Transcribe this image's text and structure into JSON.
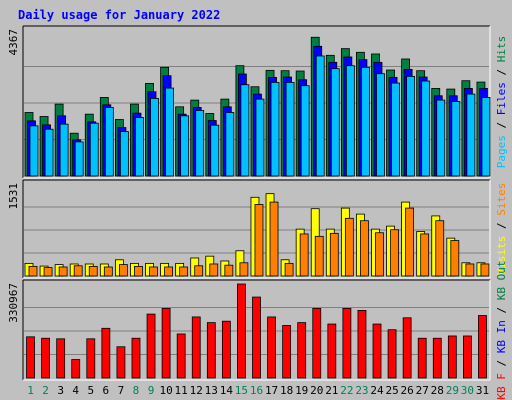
{
  "chart_data": {
    "type": "bar",
    "title": "Daily usage for January 2022",
    "x": [
      "1",
      "2",
      "3",
      "4",
      "5",
      "6",
      "7",
      "8",
      "9",
      "10",
      "11",
      "12",
      "13",
      "14",
      "15",
      "16",
      "17",
      "18",
      "19",
      "20",
      "21",
      "22",
      "23",
      "24",
      "25",
      "26",
      "27",
      "28",
      "29",
      "30",
      "31"
    ],
    "weekend_days": [
      "1",
      "2",
      "8",
      "9",
      "15",
      "16",
      "22",
      "23",
      "29",
      "30"
    ],
    "panels": [
      {
        "id": "hits",
        "ymax_label": "4367",
        "ymax": 4367,
        "right_label": [
          {
            "text": "Pages",
            "color": "#00C0FF"
          },
          {
            "text": " / ",
            "color": "#000000"
          },
          {
            "text": "Files",
            "color": "#0000FF"
          },
          {
            "text": " / ",
            "color": "#000000"
          },
          {
            "text": "Hits",
            "color": "#008040"
          }
        ],
        "series": [
          {
            "name": "Hits",
            "color": "#008040",
            "values": [
              1900,
              1780,
              2150,
              1280,
              1850,
              2350,
              1690,
              2150,
              2770,
              3250,
              2070,
              2270,
              1870,
              2300,
              3300,
              2670,
              3160,
              3150,
              3140,
              4150,
              3610,
              3810,
              3700,
              3650,
              3170,
              3500,
              3150,
              2620,
              2600,
              2850,
              2810
            ]
          },
          {
            "name": "Files",
            "color": "#0000FF",
            "values": [
              1650,
              1530,
              1800,
              1080,
              1620,
              2130,
              1450,
              1880,
              2520,
              3000,
              1850,
              2050,
              1660,
              2070,
              3050,
              2450,
              2950,
              2960,
              2880,
              3880,
              3400,
              3560,
              3480,
              3400,
              2950,
              3190,
              2960,
              2400,
              2400,
              2620,
              2620
            ]
          },
          {
            "name": "Pages",
            "color": "#00C0FF",
            "values": [
              1500,
              1400,
              1550,
              1020,
              1580,
              2050,
              1330,
              1750,
              2320,
              2630,
              1800,
              1960,
              1520,
              1900,
              2730,
              2300,
              2800,
              2800,
              2700,
              3590,
              3210,
              3300,
              3250,
              3060,
              2780,
              2980,
              2840,
              2270,
              2230,
              2450,
              2350
            ]
          }
        ]
      },
      {
        "id": "visits",
        "ymax_label": "1531",
        "ymax": 1531,
        "right_label": [
          {
            "text": "Visits",
            "color": "#FFFF00"
          },
          {
            "text": " / ",
            "color": "#000000"
          },
          {
            "text": "Sites",
            "color": "#FF8000"
          }
        ],
        "series": [
          {
            "name": "Visits",
            "color": "#FFFF00",
            "values": [
              210,
              165,
              190,
              200,
              200,
              200,
              270,
              210,
              210,
              210,
              210,
              300,
              330,
              250,
              420,
              1310,
              1370,
              270,
              780,
              1120,
              780,
              1130,
              1030,
              780,
              830,
              1230,
              740,
              1000,
              630,
              220,
              220
            ]
          },
          {
            "name": "Sites",
            "color": "#FF8000",
            "values": [
              160,
              140,
              150,
              170,
              160,
              150,
              190,
              160,
              150,
              150,
              150,
              170,
              200,
              180,
              220,
              1190,
              1230,
              210,
              700,
              660,
              710,
              960,
              920,
              720,
              770,
              1130,
              700,
              920,
              590,
              200,
              200
            ]
          }
        ]
      },
      {
        "id": "kbytes",
        "ymax_label": "330967",
        "ymax": 330967,
        "right_label": [
          {
            "text": "KB F",
            "color": "#FF0000"
          },
          {
            "text": " / ",
            "color": "#000000"
          },
          {
            "text": "KB In",
            "color": "#0000FF"
          },
          {
            "text": " / ",
            "color": "#000000"
          },
          {
            "text": "KB Out",
            "color": "#008040"
          }
        ],
        "series": [
          {
            "name": "KBytes",
            "color": "#FF0000",
            "values": [
              145000,
              140000,
              138000,
              65000,
              138000,
              175000,
              110000,
              140000,
              225000,
              245000,
              155000,
              215000,
              195000,
              200000,
              330967,
              285000,
              215000,
              185000,
              195000,
              245000,
              190000,
              245000,
              238000,
              190000,
              170000,
              212000,
              140000,
              140000,
              148000,
              148000,
              220000
            ]
          }
        ]
      }
    ],
    "colors": {
      "background": "#C0C0C0",
      "frame": "#FFFFFF",
      "title": "#0000FF",
      "weekday_label": "#000000",
      "weekend_label": "#00805C"
    },
    "grid": true
  }
}
